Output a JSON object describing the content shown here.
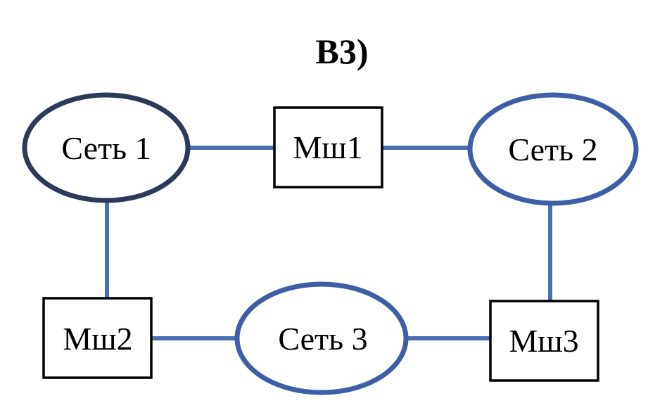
{
  "title": "В3)",
  "nodes": {
    "net1": "Сеть 1",
    "net2": "Сеть 2",
    "net3": "Сеть 3",
    "router1": "Мш1",
    "router2": "Мш2",
    "router3": "Мш3"
  },
  "colors": {
    "link": "#4a6fb3",
    "net1_border": "#2b3a57",
    "net_border": "#3f5ea6",
    "router_border": "#000000"
  }
}
